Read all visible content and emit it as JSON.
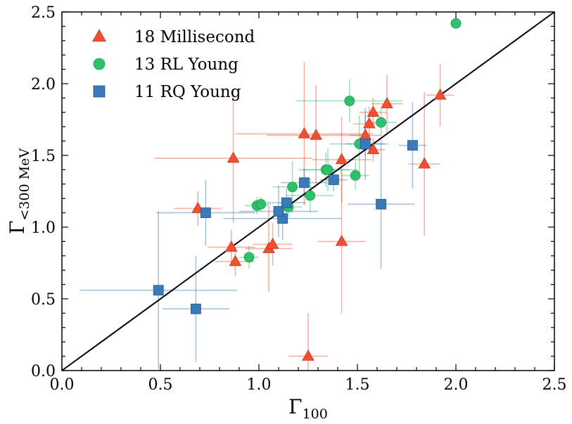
{
  "chart_data": {
    "type": "scatter",
    "xlabel": {
      "main": "Γ",
      "sub": "100"
    },
    "ylabel": {
      "main": "Γ",
      "sub": "<300 MeV"
    },
    "xlim": [
      0.0,
      2.5
    ],
    "ylim": [
      0.0,
      2.5
    ],
    "xticks": [
      "0.0",
      "0.5",
      "1.0",
      "1.5",
      "2.0",
      "2.5"
    ],
    "yticks": [
      "0.0",
      "0.5",
      "1.0",
      "1.5",
      "2.0",
      "2.5"
    ],
    "grid": false,
    "legend_position": "top-left",
    "reference_line": {
      "label": "y = x",
      "color": "#000000"
    },
    "series": [
      {
        "name": "18 Millisecond",
        "marker": "triangle",
        "color": "#f0502d",
        "points": [
          {
            "x": 0.69,
            "y": 1.13,
            "xerr": 0.12,
            "yerr": 0.12
          },
          {
            "x": 0.86,
            "y": 0.86,
            "xerr": 0.12,
            "yerr": 0.12
          },
          {
            "x": 0.87,
            "y": 1.48,
            "xerr": 0.4,
            "yerr": 0.45
          },
          {
            "x": 0.88,
            "y": 0.76,
            "xerr": 0.1,
            "yerr": 0.1
          },
          {
            "x": 1.05,
            "y": 0.85,
            "xerr": 0.12,
            "yerr": 0.3
          },
          {
            "x": 1.07,
            "y": 0.88,
            "xerr": 0.1,
            "yerr": 0.15
          },
          {
            "x": 1.23,
            "y": 1.65,
            "xerr": 0.35,
            "yerr": 0.5
          },
          {
            "x": 1.25,
            "y": 0.1,
            "xerr": 0.1,
            "yerr": 0.3
          },
          {
            "x": 1.29,
            "y": 1.64,
            "xerr": 0.25,
            "yerr": 0.35
          },
          {
            "x": 1.42,
            "y": 1.47,
            "xerr": 0.15,
            "yerr": 0.3
          },
          {
            "x": 1.42,
            "y": 0.9,
            "xerr": 0.12,
            "yerr": 0.5
          },
          {
            "x": 1.54,
            "y": 1.64,
            "xerr": 0.08,
            "yerr": 0.15
          },
          {
            "x": 1.56,
            "y": 1.72,
            "xerr": 0.08,
            "yerr": 0.12
          },
          {
            "x": 1.58,
            "y": 1.8,
            "xerr": 0.07,
            "yerr": 0.1
          },
          {
            "x": 1.58,
            "y": 1.54,
            "xerr": 0.06,
            "yerr": 0.08
          },
          {
            "x": 1.65,
            "y": 1.86,
            "xerr": 0.08,
            "yerr": 0.2
          },
          {
            "x": 1.84,
            "y": 1.44,
            "xerr": 0.08,
            "yerr": 0.5
          },
          {
            "x": 1.92,
            "y": 1.92,
            "xerr": 0.07,
            "yerr": 0.22
          }
        ]
      },
      {
        "name": "13 RL Young",
        "marker": "circle",
        "color": "#2ec06a",
        "points": [
          {
            "x": 0.95,
            "y": 0.79,
            "xerr": 0.05,
            "yerr": 0.08
          },
          {
            "x": 0.99,
            "y": 1.15,
            "xerr": 0.06,
            "yerr": 0.06
          },
          {
            "x": 1.01,
            "y": 1.16,
            "xerr": 0.05,
            "yerr": 0.05
          },
          {
            "x": 1.15,
            "y": 1.14,
            "xerr": 0.07,
            "yerr": 0.07
          },
          {
            "x": 1.17,
            "y": 1.28,
            "xerr": 0.1,
            "yerr": 0.18
          },
          {
            "x": 1.26,
            "y": 1.22,
            "xerr": 0.12,
            "yerr": 0.12
          },
          {
            "x": 1.34,
            "y": 1.4,
            "xerr": 0.12,
            "yerr": 0.12
          },
          {
            "x": 1.35,
            "y": 1.4,
            "xerr": 0.15,
            "yerr": 0.15
          },
          {
            "x": 1.46,
            "y": 1.88,
            "xerr": 0.27,
            "yerr": 0.15
          },
          {
            "x": 1.49,
            "y": 1.36,
            "xerr": 0.07,
            "yerr": 0.1
          },
          {
            "x": 1.51,
            "y": 1.58,
            "xerr": 0.15,
            "yerr": 0.2
          },
          {
            "x": 1.62,
            "y": 1.73,
            "xerr": 0.08,
            "yerr": 0.1
          },
          {
            "x": 2.0,
            "y": 2.42,
            "xerr": 0.03,
            "yerr": 0.03
          }
        ]
      },
      {
        "name": "11 RQ Young",
        "marker": "square",
        "color": "#3a7ab8",
        "points": [
          {
            "x": 0.49,
            "y": 0.56,
            "xerr": 0.4,
            "yerr": 0.55
          },
          {
            "x": 0.68,
            "y": 0.43,
            "xerr": 0.17,
            "yerr": 0.37
          },
          {
            "x": 0.73,
            "y": 1.1,
            "xerr": 0.25,
            "yerr": 0.23
          },
          {
            "x": 1.12,
            "y": 1.06,
            "xerr": 0.3,
            "yerr": 0.15
          },
          {
            "x": 1.1,
            "y": 1.11,
            "xerr": 0.2,
            "yerr": 0.18
          },
          {
            "x": 1.14,
            "y": 1.17,
            "xerr": 0.1,
            "yerr": 0.1
          },
          {
            "x": 1.23,
            "y": 1.31,
            "xerr": 0.12,
            "yerr": 0.1
          },
          {
            "x": 1.38,
            "y": 1.33,
            "xerr": 0.07,
            "yerr": 0.08
          },
          {
            "x": 1.54,
            "y": 1.58,
            "xerr": 0.1,
            "yerr": 0.25
          },
          {
            "x": 1.62,
            "y": 1.16,
            "xerr": 0.17,
            "yerr": 0.45
          },
          {
            "x": 1.78,
            "y": 1.57,
            "xerr": 0.07,
            "yerr": 0.3
          }
        ]
      }
    ]
  }
}
